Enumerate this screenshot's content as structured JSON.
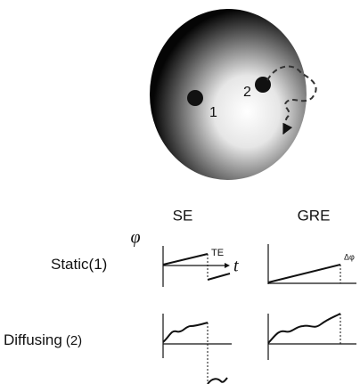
{
  "ellipse": {
    "labels": [
      "1",
      "2"
    ]
  },
  "columns": [
    "SE",
    "GRE"
  ],
  "axis": {
    "y": "φ",
    "x": "t",
    "te": "TE",
    "delta": "Δφ"
  },
  "rows": [
    {
      "label": "Static",
      "number": "(1)"
    },
    {
      "label": "Diffusing",
      "number": "(2)"
    }
  ]
}
